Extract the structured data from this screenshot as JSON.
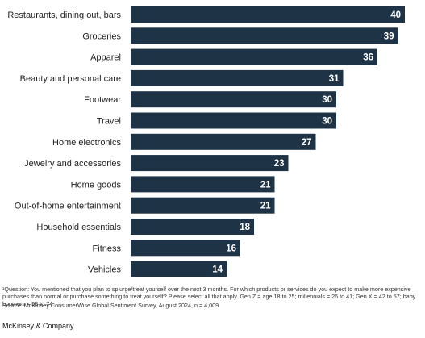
{
  "chart_data": {
    "type": "bar",
    "orientation": "horizontal",
    "categories": [
      "Restaurants, dining out, bars",
      "Groceries",
      "Apparel",
      "Beauty and personal care",
      "Footwear",
      "Travel",
      "Home electronics",
      "Jewelry and accessories",
      "Home goods",
      "Out-of-home entertainment",
      "Household essentials",
      "Fitness",
      "Vehicles"
    ],
    "values": [
      40,
      39,
      36,
      31,
      30,
      30,
      27,
      23,
      21,
      21,
      18,
      16,
      14
    ],
    "xlim": [
      0,
      40
    ],
    "grid": false,
    "legend": "none",
    "bar_color": "#1f3347",
    "value_label_color": "#ffffff"
  },
  "footnote": {
    "question": "¹Question: You mentioned that you plan to splurge/treat yourself over the next 3 months. For which products or services do you expect to make more expensive purchases than normal or purchase something to treat yourself? Please select all that apply. Gen Z = age 18 to 25; millennials = 26 to 41; Gen X = 42 to 57; baby boomers = 58 to 74.",
    "source": "Source: McKinsey ConsumerWise Global Sentiment Survey, August 2024, n = 4,009"
  },
  "brand": "McKinsey & Company"
}
